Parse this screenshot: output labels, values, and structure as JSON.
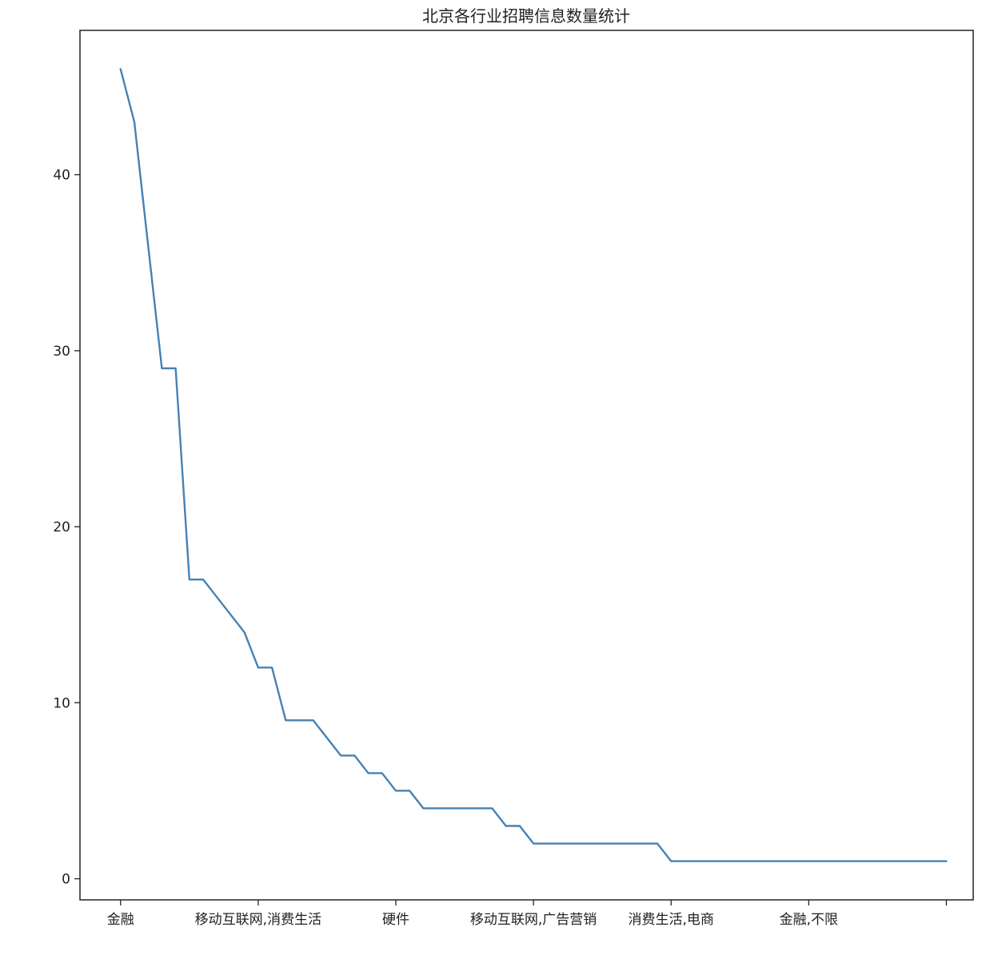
{
  "chart_data": {
    "type": "line",
    "title": "北京各行业招聘信息数量统计",
    "xlabel": "",
    "ylabel": "",
    "x_tick_labels": [
      "金融",
      "移动互联网,消费生活",
      "硬件",
      "移动互联网,广告营销",
      "消费生活,电商",
      "金融,不限"
    ],
    "x_tick_index": [
      0,
      10,
      20,
      30,
      40,
      50
    ],
    "y_ticks": [
      0,
      10,
      20,
      30,
      40
    ],
    "ylim": [
      -1.2,
      48.2
    ],
    "xlim": [
      -2.95,
      61.95
    ],
    "grid": false,
    "legend": "none",
    "series": [
      {
        "color": "#4682b4",
        "values": [
          46,
          43,
          36,
          29,
          29,
          17,
          17,
          16,
          15,
          14,
          12,
          12,
          9,
          9,
          9,
          8,
          7,
          7,
          6,
          6,
          5,
          5,
          4,
          4,
          4,
          4,
          4,
          4,
          3,
          3,
          2,
          2,
          2,
          2,
          2,
          2,
          2,
          2,
          2,
          2,
          1,
          1,
          1,
          1,
          1,
          1,
          1,
          1,
          1,
          1,
          1,
          1,
          1,
          1,
          1,
          1,
          1,
          1,
          1,
          1,
          1
        ]
      }
    ]
  }
}
